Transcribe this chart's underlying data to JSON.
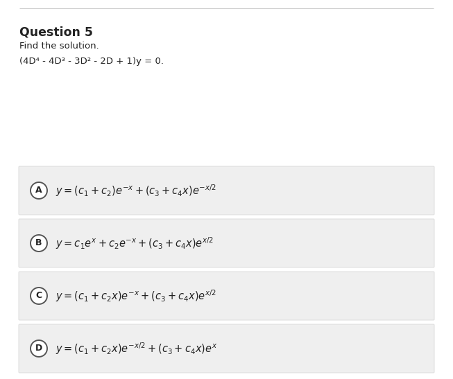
{
  "title": "Question 5",
  "subtitle": "Find the solution.",
  "equation": "(4D⁴ - 4D³ - 3D² - 2D + 1)y = 0.",
  "page_bg": "#ffffff",
  "option_box_color": "#efefef",
  "circle_edge_color": "#555555",
  "text_color": "#222222",
  "top_line_color": "#cccccc",
  "math_exprs": [
    "$y = (c_1+c_2)e^{-x}+ (c_3+c_4x)e^{-x/2}$",
    "$y = c_1e^{x}+c_2e^{-x}+ (c_3+c_4x)e^{x/2}$",
    "$y = (c_1+c_2x)e^{-x}+ (c_3+c_4x)e^{x/2}$",
    "$y = (c_1+c_2x)e^{-x/2}+ (c_3+c_4x)e^{x}$"
  ],
  "labels": [
    "A",
    "B",
    "C",
    "D"
  ],
  "figsize": [
    6.53,
    5.47
  ],
  "dpi": 100
}
